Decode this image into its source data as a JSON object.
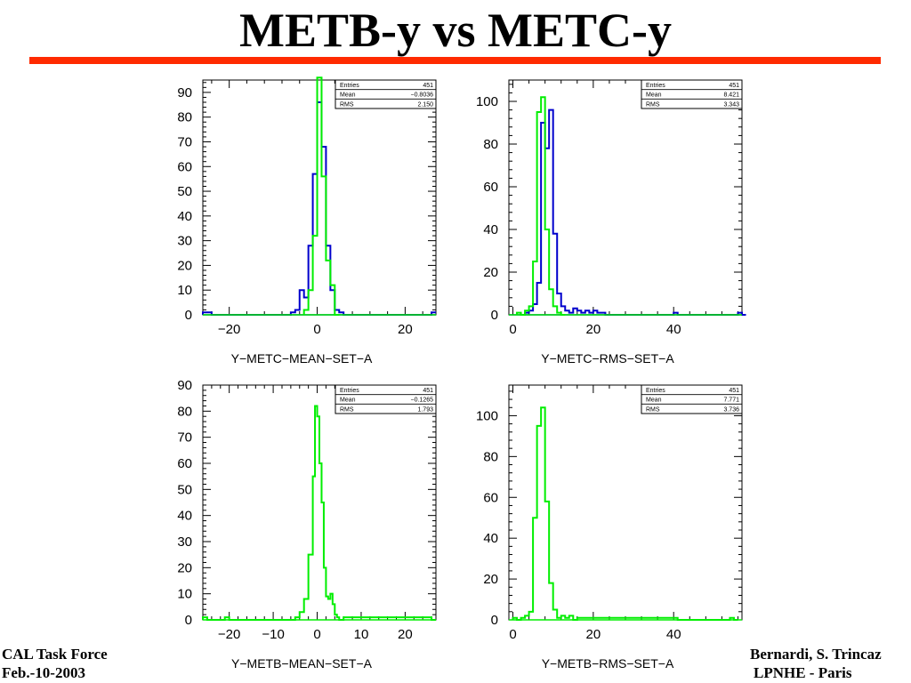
{
  "slide": {
    "title": "METB-y vs METC-y",
    "footer_left_line1": "CAL Task Force",
    "footer_left_line2": "Feb.-10-2003",
    "footer_right_line1": "Bernardi, S. Trincaz",
    "footer_right_line2": "LPNHE - Paris",
    "colors": {
      "title_bar": "#ff2a00",
      "blue_series": "#0000cc",
      "green_series": "#00ee00"
    }
  },
  "chart_data": [
    {
      "type": "histogram",
      "xlabel": "Y−METC−MEAN−SET−A",
      "xlim": [
        -26,
        27
      ],
      "ylim": [
        0,
        95
      ],
      "xticks": [
        -20,
        0,
        20
      ],
      "xtick_labels": [
        "−20",
        "0",
        "20"
      ],
      "yticks": [
        0,
        10,
        20,
        30,
        40,
        50,
        60,
        70,
        80,
        90
      ],
      "ytick_labels": [
        "0",
        "10",
        "20",
        "30",
        "40",
        "50",
        "60",
        "70",
        "80",
        "90"
      ],
      "stats": {
        "labels": [
          "Entries",
          "Mean",
          "RMS"
        ],
        "values": [
          "451",
          "−0.8036",
          "2.150"
        ]
      },
      "series": [
        {
          "color": "#0000cc",
          "x": [
            -26,
            -25,
            -24,
            -7,
            -6,
            -5,
            -4,
            -3,
            -2,
            -1,
            0,
            1,
            2,
            3,
            4,
            5,
            6,
            26
          ],
          "values": [
            1,
            1,
            0,
            0,
            1,
            2,
            10,
            7,
            28,
            57,
            86,
            68,
            28,
            10,
            2,
            1,
            0,
            1
          ]
        },
        {
          "color": "#00ee00",
          "x": [
            -3,
            -2,
            -1,
            0,
            1,
            2,
            3,
            4
          ],
          "values": [
            2,
            10,
            32,
            96,
            56,
            22,
            12,
            0
          ]
        }
      ]
    },
    {
      "type": "histogram",
      "xlabel": "Y−METC−RMS−SET−A",
      "xlim": [
        -1,
        57
      ],
      "ylim": [
        0,
        110
      ],
      "xticks": [
        0,
        20,
        40
      ],
      "xtick_labels": [
        "0",
        "20",
        "40"
      ],
      "yticks": [
        0,
        20,
        40,
        60,
        80,
        100
      ],
      "ytick_labels": [
        "0",
        "20",
        "40",
        "60",
        "80",
        "100"
      ],
      "stats": {
        "labels": [
          "Entries",
          "Mean",
          "RMS"
        ],
        "values": [
          "451",
          "8.421",
          "3.343"
        ]
      },
      "series": [
        {
          "color": "#0000cc",
          "x": [
            3,
            4,
            5,
            6,
            7,
            8,
            9,
            10,
            11,
            12,
            13,
            14,
            15,
            16,
            17,
            18,
            19,
            20,
            21,
            22,
            23,
            40,
            41,
            56,
            57
          ],
          "values": [
            1,
            2,
            5,
            15,
            90,
            78,
            96,
            38,
            10,
            4,
            2,
            1,
            3,
            2,
            1,
            2,
            1,
            2,
            1,
            1,
            0,
            1,
            0,
            1,
            0
          ]
        },
        {
          "color": "#00ee00",
          "x": [
            1,
            2,
            3,
            4,
            5,
            6,
            7,
            8,
            9,
            10,
            11,
            12
          ],
          "values": [
            1,
            0,
            2,
            4,
            25,
            95,
            102,
            40,
            12,
            4,
            1,
            0
          ]
        }
      ]
    },
    {
      "type": "histogram",
      "xlabel": "Y−METB−MEAN−SET−A",
      "xlim": [
        -26,
        27
      ],
      "ylim": [
        0,
        90
      ],
      "xticks": [
        -20,
        -10,
        0,
        10,
        20
      ],
      "xtick_labels": [
        "−20",
        "−10",
        "0",
        "10",
        "20"
      ],
      "yticks": [
        0,
        10,
        20,
        30,
        40,
        50,
        60,
        70,
        80,
        90
      ],
      "ytick_labels": [
        "0",
        "10",
        "20",
        "30",
        "40",
        "50",
        "60",
        "70",
        "80",
        "90"
      ],
      "stats": {
        "labels": [
          "Entries",
          "Mean",
          "RMS"
        ],
        "values": [
          "451",
          "−0.1265",
          "1.793"
        ]
      },
      "series": [
        {
          "color": "#00ee00",
          "x": [
            -26,
            -25,
            -24,
            -21,
            -20,
            -5,
            -4,
            -3,
            -2,
            -1,
            -0.5,
            0,
            0.5,
            1,
            1.5,
            2,
            2.5,
            3,
            3.5,
            4,
            4.5,
            5,
            6,
            26
          ],
          "values": [
            1,
            0,
            0,
            1,
            0,
            1,
            3,
            8,
            25,
            55,
            82,
            78,
            60,
            45,
            20,
            9,
            8,
            10,
            6,
            2,
            1,
            0,
            1,
            0
          ]
        }
      ]
    },
    {
      "type": "histogram",
      "xlabel": "Y−METB−RMS−SET−A",
      "xlim": [
        -1,
        57
      ],
      "ylim": [
        0,
        115
      ],
      "xticks": [
        0,
        20,
        40
      ],
      "xtick_labels": [
        "0",
        "20",
        "40"
      ],
      "yticks": [
        0,
        20,
        40,
        60,
        80,
        100
      ],
      "ytick_labels": [
        "0",
        "20",
        "40",
        "60",
        "80",
        "100"
      ],
      "stats": {
        "labels": [
          "Entries",
          "Mean",
          "RMS"
        ],
        "values": [
          "451",
          "7.771",
          "3.736"
        ]
      },
      "series": [
        {
          "color": "#00ee00",
          "x": [
            0,
            1,
            2,
            3,
            4,
            5,
            6,
            7,
            8,
            9,
            10,
            11,
            12,
            13,
            14,
            15,
            16,
            40,
            41,
            54,
            55
          ],
          "values": [
            1,
            0,
            1,
            2,
            4,
            50,
            95,
            104,
            58,
            18,
            5,
            1,
            2,
            1,
            2,
            0,
            1,
            1,
            0,
            1,
            0
          ]
        }
      ]
    }
  ]
}
